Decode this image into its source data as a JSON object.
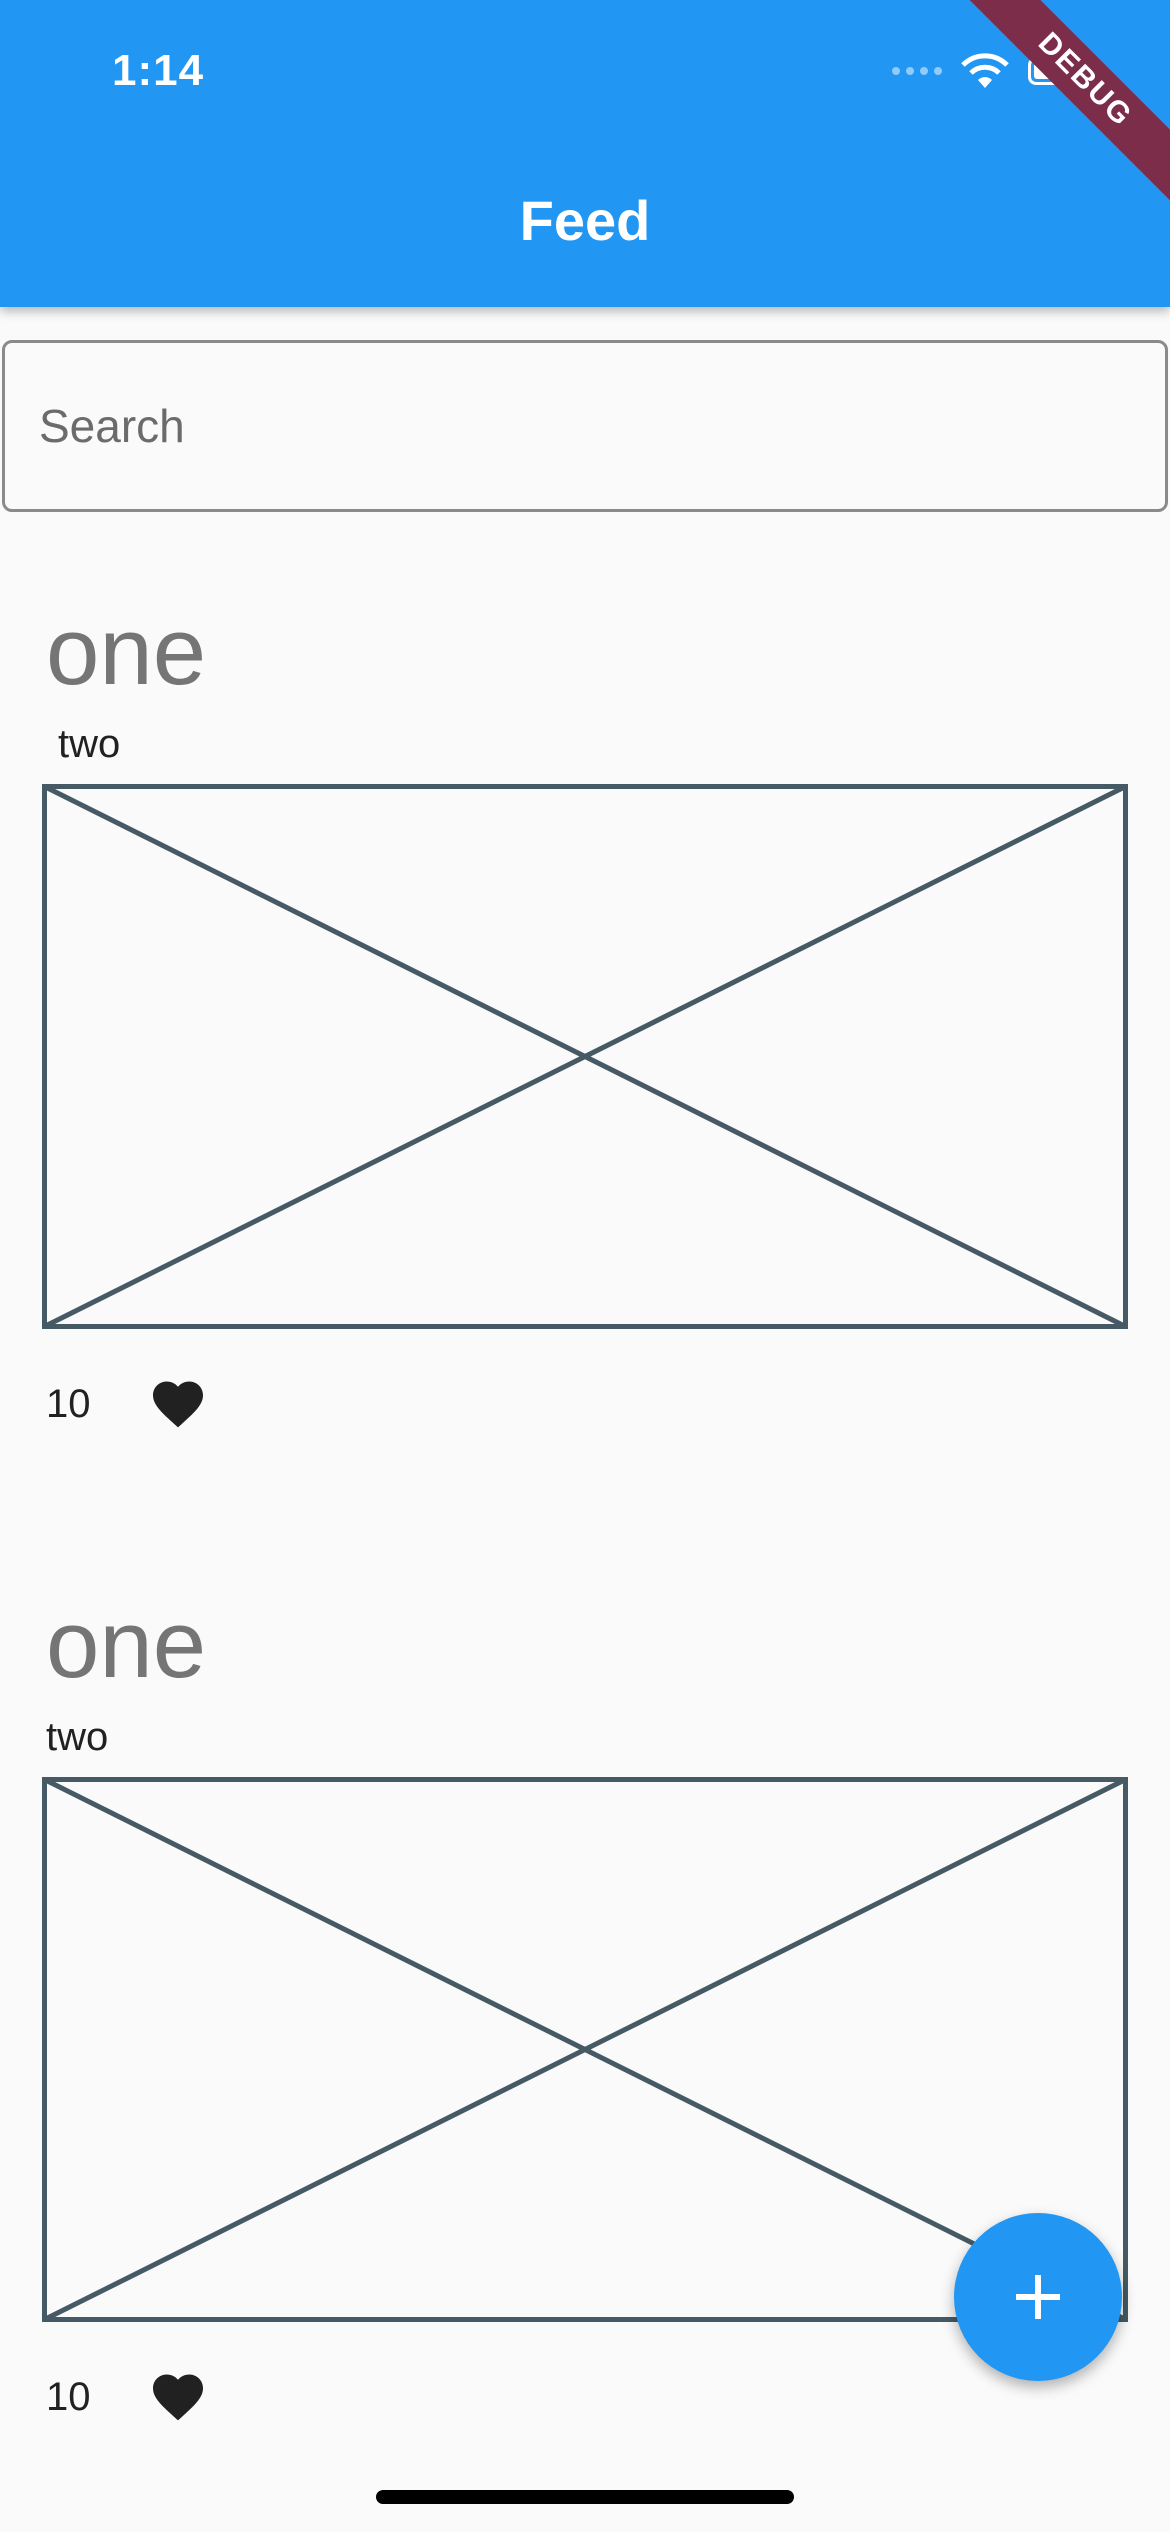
{
  "status_bar": {
    "time": "1:14",
    "icons": [
      "signal-icon",
      "wifi-icon",
      "battery-icon"
    ],
    "debug_banner": "DEBUG"
  },
  "app_bar": {
    "title": "Feed",
    "color": "#2196f3"
  },
  "search": {
    "placeholder": "Search",
    "value": ""
  },
  "posts": [
    {
      "title": "one",
      "subtitle": "two",
      "image": "image-placeholder",
      "likes": "10",
      "like_icon": "heart-icon"
    },
    {
      "title": "one",
      "subtitle": "two",
      "image": "image-placeholder",
      "likes": "10",
      "like_icon": "heart-icon"
    }
  ],
  "fab": {
    "icon": "plus-icon",
    "color": "#2196f3"
  }
}
